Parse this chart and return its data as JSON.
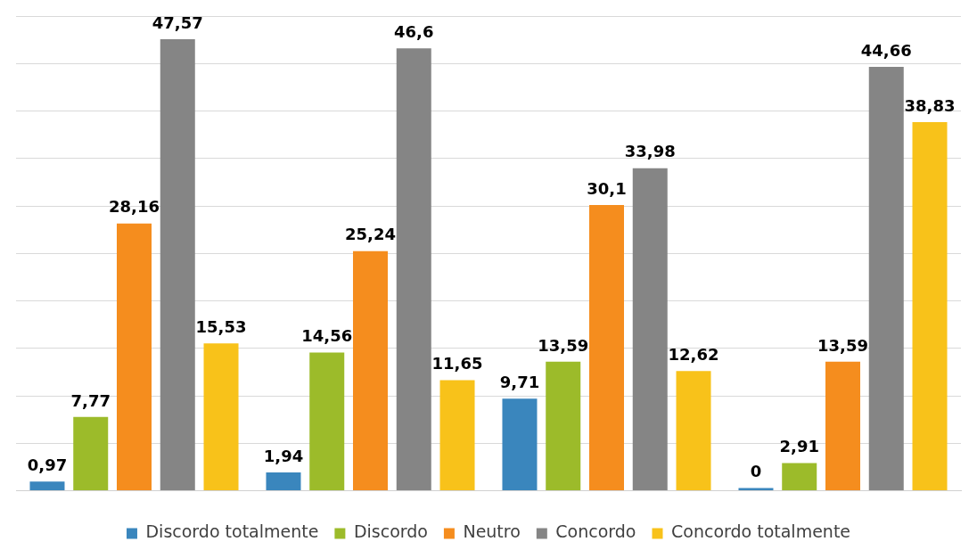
{
  "chart_data": {
    "type": "bar",
    "categories": [
      null,
      null,
      null,
      null
    ],
    "series": [
      {
        "name": "Discordo totalmente",
        "color": "#3a86bd",
        "values": [
          0.97,
          1.94,
          9.71,
          0
        ],
        "value_labels": [
          "0,97",
          "1,94",
          "9,71",
          "0"
        ]
      },
      {
        "name": "Discordo",
        "color": "#9cbb2a",
        "values": [
          7.77,
          14.56,
          13.59,
          2.91
        ],
        "value_labels": [
          "7,77",
          "14,56",
          "13,59",
          "2,91"
        ]
      },
      {
        "name": "Neutro",
        "color": "#f58d1e",
        "values": [
          28.16,
          25.24,
          30.1,
          13.59
        ],
        "value_labels": [
          "28,16",
          "25,24",
          "30,1",
          "13,59"
        ]
      },
      {
        "name": "Concordo",
        "color": "#858585",
        "values": [
          47.57,
          46.6,
          33.98,
          44.66
        ],
        "value_labels": [
          "47,57",
          "46,6",
          "33,98",
          "44,66"
        ]
      },
      {
        "name": "Concordo totalmente",
        "color": "#f8c21a",
        "values": [
          15.53,
          11.65,
          12.62,
          38.83
        ],
        "value_labels": [
          "15,53",
          "11,65",
          "12,62",
          "38,83"
        ]
      }
    ],
    "grid": "y",
    "legend": "bottom"
  }
}
